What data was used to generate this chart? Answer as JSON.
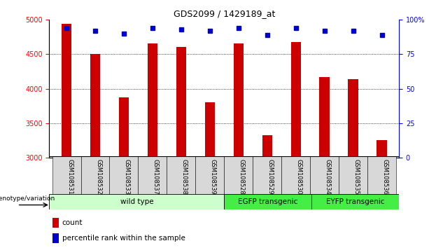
{
  "title": "GDS2099 / 1429189_at",
  "samples": [
    "GSM108531",
    "GSM108532",
    "GSM108533",
    "GSM108537",
    "GSM108538",
    "GSM108539",
    "GSM108528",
    "GSM108529",
    "GSM108530",
    "GSM108534",
    "GSM108535",
    "GSM108536"
  ],
  "counts": [
    4940,
    4500,
    3870,
    4660,
    4610,
    3800,
    4660,
    3320,
    4680,
    4170,
    4140,
    3250
  ],
  "percentiles": [
    94,
    92,
    90,
    94,
    93,
    92,
    94,
    89,
    94,
    92,
    92,
    89
  ],
  "ylim_left": [
    3000,
    5000
  ],
  "ylim_right": [
    0,
    100
  ],
  "yticks_left": [
    3000,
    3500,
    4000,
    4500,
    5000
  ],
  "yticks_right": [
    0,
    25,
    50,
    75,
    100
  ],
  "bar_color": "#CC0000",
  "dot_color": "#0000CC",
  "groups": [
    {
      "label": "wild type",
      "start": 0,
      "end": 6,
      "color": "#ccffcc"
    },
    {
      "label": "EGFP transgenic",
      "start": 6,
      "end": 9,
      "color": "#66ff66"
    },
    {
      "label": "EYFP transgenic",
      "start": 9,
      "end": 12,
      "color": "#66ff66"
    }
  ],
  "group_label": "genotype/variation",
  "legend_count": "count",
  "legend_percentile": "percentile rank within the sample",
  "bar_width": 0.35,
  "tick_bg_color": "#d8d8d8",
  "wild_type_color": "#ccffcc",
  "transgenic_color": "#44ee44"
}
